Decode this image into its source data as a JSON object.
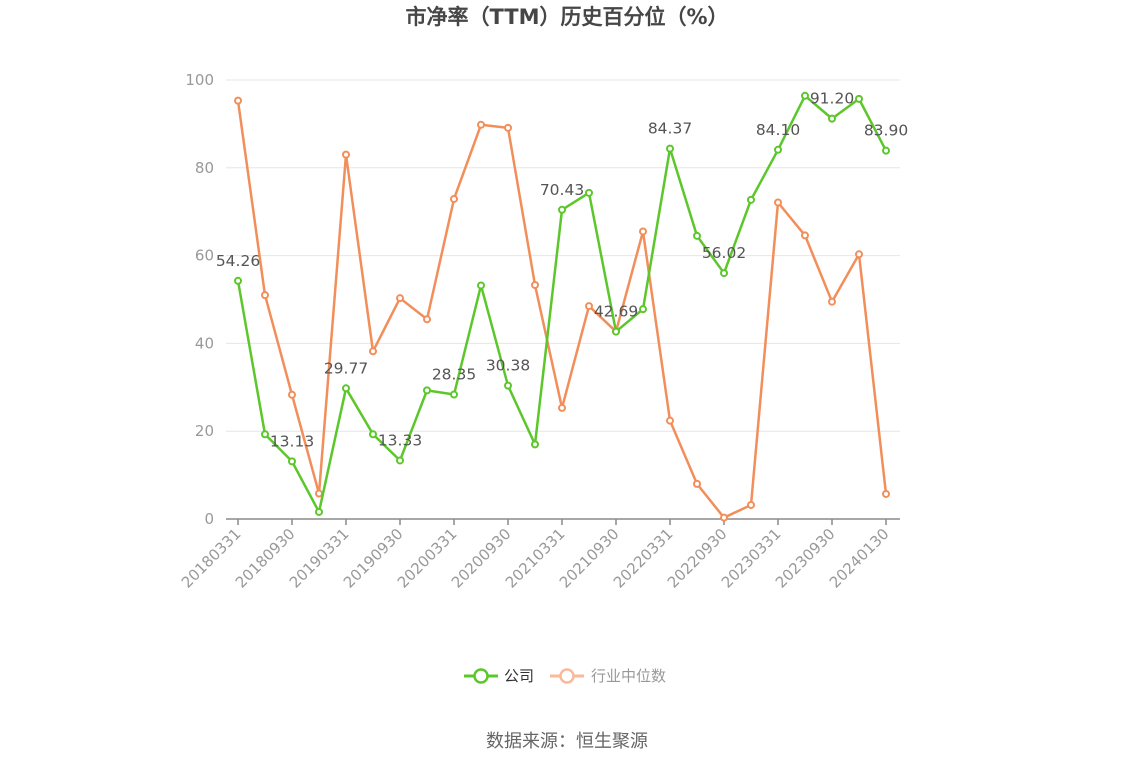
{
  "chart_data": {
    "type": "line",
    "title": "市净率（TTM）历史百分位（%）",
    "xlabel": "",
    "ylabel": "",
    "ylim": [
      0,
      100
    ],
    "yticks": [
      0,
      20,
      40,
      60,
      80,
      100
    ],
    "grid": true,
    "legend_position": "bottom",
    "x": [
      "20180331",
      "20180630",
      "20180930",
      "20181231",
      "20190331",
      "20190630",
      "20190930",
      "20191231",
      "20200331",
      "20200630",
      "20200930",
      "20201231",
      "20210331",
      "20210630",
      "20210930",
      "20211231",
      "20220331",
      "20220630",
      "20220930",
      "20221231",
      "20230331",
      "20230630",
      "20230930",
      "20231231",
      "20240130"
    ],
    "x_tick_labels": [
      "20180331",
      "20180930",
      "20190331",
      "20190930",
      "20200331",
      "20200930",
      "20210331",
      "20210930",
      "20220331",
      "20220930",
      "20230331",
      "20230930",
      "20240130"
    ],
    "series": [
      {
        "name": "公司",
        "color": "#5cc72b",
        "values": [
          54.26,
          19.3,
          13.13,
          1.6,
          29.77,
          19.3,
          13.33,
          29.3,
          28.35,
          53.2,
          30.38,
          17.0,
          70.43,
          74.3,
          42.69,
          47.8,
          84.37,
          64.5,
          56.02,
          72.7,
          84.1,
          96.4,
          91.2,
          95.7,
          83.9
        ],
        "labels": {
          "0": "54.26",
          "2": "13.13",
          "4": "29.77",
          "6": "13.33",
          "8": "28.35",
          "10": "30.38",
          "12": "70.43",
          "14": "42.69",
          "16": "84.37",
          "18": "56.02",
          "20": "84.10",
          "22": "91.20",
          "24": "83.90"
        }
      },
      {
        "name": "行业中位数",
        "color": "#f28e5a",
        "values": [
          95.3,
          51.0,
          28.3,
          5.8,
          83.0,
          38.2,
          50.3,
          45.5,
          72.9,
          89.8,
          89.1,
          53.3,
          25.3,
          48.5,
          42.7,
          65.5,
          22.4,
          8.0,
          0.3,
          3.2,
          72.1,
          64.6,
          49.5,
          60.3,
          5.7
        ]
      }
    ]
  },
  "legend": {
    "items": [
      {
        "label": "公司",
        "color": "#5cc72b"
      },
      {
        "label": "行业中位数",
        "color": "#f9b99a"
      }
    ]
  },
  "source_text": "数据来源：恒生聚源"
}
